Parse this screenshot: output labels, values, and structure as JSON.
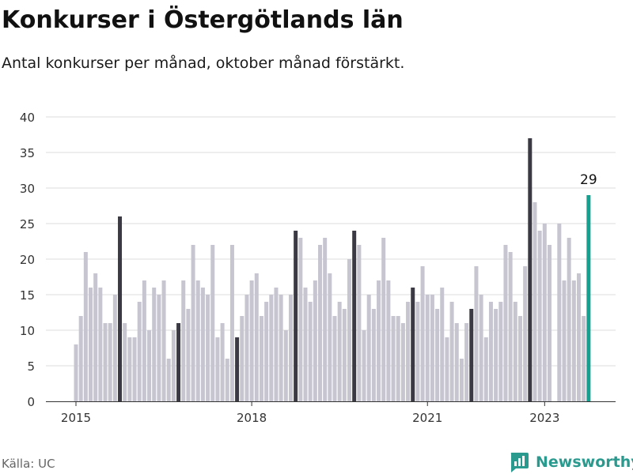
{
  "title": "Konkurser i Östergötlands län",
  "subtitle": "Antal konkurser per månad, oktober månad förstärkt.",
  "source": "Källa: UC",
  "brand": "Newsworthy",
  "colors": {
    "normal": "#c6c5d0",
    "highlight": "#3a3944",
    "latest": "#16a08f",
    "grid": "#dddddd",
    "brand": "#2a9a8f"
  },
  "chart_data": {
    "type": "bar",
    "ylim": [
      0,
      40
    ],
    "yticks": [
      0,
      5,
      10,
      15,
      20,
      25,
      30,
      35,
      40
    ],
    "xticks": [
      {
        "label": "2015",
        "index": 0
      },
      {
        "label": "2018",
        "index": 36
      },
      {
        "label": "2021",
        "index": 72
      },
      {
        "label": "2023",
        "index": 96
      }
    ],
    "series": [
      {
        "values": [
          8,
          12,
          21,
          16,
          18,
          16,
          11,
          11,
          15,
          26,
          11,
          9,
          9,
          14,
          17,
          10,
          16,
          15,
          17,
          6,
          10,
          11,
          17,
          13,
          22,
          17,
          16,
          15,
          22,
          9,
          11,
          6,
          22,
          9,
          12,
          15,
          17,
          18,
          12,
          14,
          15,
          16,
          15,
          10,
          15,
          24,
          23,
          16,
          14,
          17,
          22,
          23,
          18,
          12,
          14,
          13,
          20,
          24,
          22,
          10,
          15,
          13,
          17,
          23,
          17,
          12,
          12,
          11,
          14,
          16,
          14,
          19,
          15,
          15,
          13,
          16,
          9,
          14,
          11,
          6,
          11,
          13,
          19,
          15,
          9,
          14,
          13,
          14,
          22,
          21,
          14,
          12,
          19,
          37,
          28,
          24,
          25,
          22,
          0,
          25,
          17,
          23,
          17,
          18,
          12,
          29
        ]
      }
    ],
    "highlight_indices": [
      9,
      21,
      33,
      45,
      57,
      69,
      81,
      93
    ],
    "latest_index": 105,
    "latest_label": "29"
  }
}
